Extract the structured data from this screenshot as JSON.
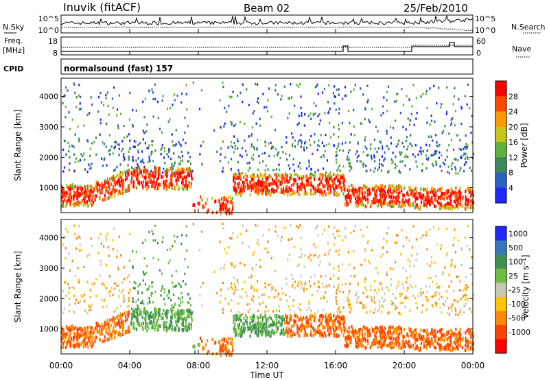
{
  "header": {
    "station": "Inuvik (fitACF)",
    "beam": "Beam 02",
    "date": "25/Feb/2010"
  },
  "panels": {
    "nsky": {
      "left_label": "N.Sky",
      "right_label": "N.Search",
      "left_ticks": [
        "10^5",
        "10^0"
      ],
      "right_ticks": [
        "10^5",
        "10^0"
      ]
    },
    "freq": {
      "left_label_line1": "Freq.",
      "left_label_line2": "[MHz]",
      "right_label": "Nave",
      "left_ticks": [
        "18",
        "8"
      ],
      "right_ticks": [
        "60",
        "0"
      ]
    },
    "cpid": {
      "label": "CPID",
      "program": "normalsound (fast) 157"
    }
  },
  "colors": {
    "power_scale": [
      "#1e28ff",
      "#2b5fc4",
      "#3d8a58",
      "#5fb33a",
      "#c9c61a",
      "#ff9b00",
      "#ff4a00",
      "#ff0000"
    ],
    "velocity_scale": [
      "#1e28ff",
      "#3577b8",
      "#3f8f55",
      "#6fbe44",
      "#c8c8b4",
      "#ffc400",
      "#ff8a00",
      "#ff4300",
      "#ff0000"
    ]
  },
  "chart_data": [
    {
      "type": "heatmap",
      "title": "",
      "xlabel": "",
      "ylabel": "Slant Range [km]",
      "xlim": [
        "00:00",
        "24:00"
      ],
      "ylim": [
        180,
        4600
      ],
      "y_ticks": [
        "1000",
        "2000",
        "3000",
        "4000"
      ],
      "colorbar": {
        "label": "Power [dB]",
        "ticks": [
          "4",
          "8",
          "12",
          "16",
          "20",
          "24",
          "28"
        ],
        "range": [
          0,
          32
        ]
      }
    },
    {
      "type": "heatmap",
      "title": "",
      "xlabel": "Time UT",
      "ylabel": "Slant Range [km]",
      "x_ticks": [
        "00:00",
        "04:00",
        "08:00",
        "12:00",
        "16:00",
        "20:00",
        "00:00"
      ],
      "xlim": [
        "00:00",
        "24:00"
      ],
      "ylim": [
        180,
        4600
      ],
      "y_ticks": [
        "1000",
        "2000",
        "3000",
        "4000"
      ],
      "colorbar": {
        "label": "Velocity [m s⁻¹]",
        "ticks": [
          "1000",
          "500",
          "100",
          "25",
          "-25",
          "-100",
          "-500",
          "-1000"
        ]
      }
    }
  ]
}
